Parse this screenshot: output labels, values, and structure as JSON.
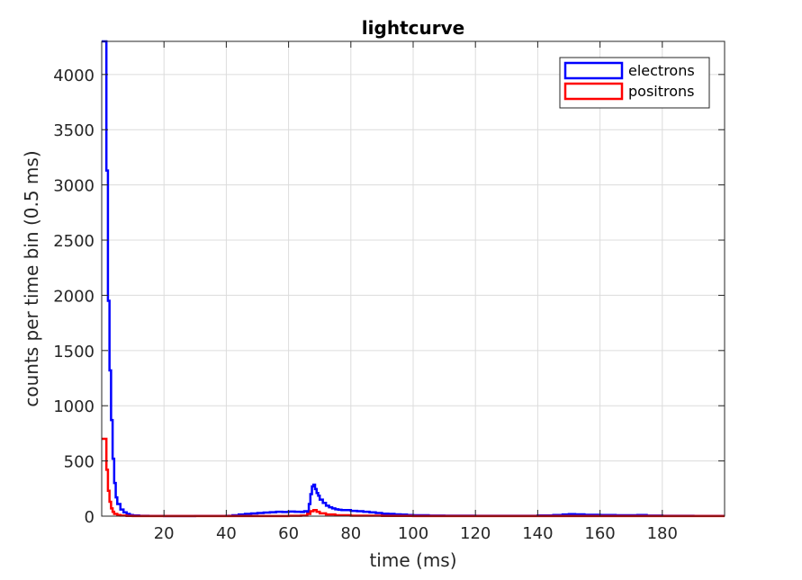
{
  "chart_data": {
    "type": "line",
    "title": "lightcurve",
    "xlabel": "time (ms)",
    "ylabel": "counts per time bin (0.5 ms)",
    "xlim": [
      0,
      200
    ],
    "ylim": [
      0,
      4300
    ],
    "xticks": [
      20,
      40,
      60,
      80,
      100,
      120,
      140,
      160,
      180
    ],
    "yticks": [
      0,
      500,
      1000,
      1500,
      2000,
      2500,
      3000,
      3500,
      4000
    ],
    "xtick_labels": [
      "20",
      "40",
      "60",
      "80",
      "100",
      "120",
      "140",
      "160",
      "180"
    ],
    "ytick_labels": [
      "0",
      "500",
      "1000",
      "1500",
      "2000",
      "2500",
      "3000",
      "3500",
      "4000"
    ],
    "grid": true,
    "legend_position": "top-right",
    "style": "stairs",
    "series": [
      {
        "name": "electrons",
        "color": "#0000ff",
        "points": [
          [
            0,
            4300
          ],
          [
            1,
            4300
          ],
          [
            1.5,
            3130
          ],
          [
            2,
            1950
          ],
          [
            2.5,
            1320
          ],
          [
            3,
            870
          ],
          [
            3.5,
            520
          ],
          [
            4,
            300
          ],
          [
            4.5,
            170
          ],
          [
            5,
            110
          ],
          [
            6,
            60
          ],
          [
            7,
            35
          ],
          [
            8,
            20
          ],
          [
            9,
            10
          ],
          [
            10,
            6
          ],
          [
            12,
            3
          ],
          [
            15,
            2
          ],
          [
            20,
            1
          ],
          [
            30,
            2
          ],
          [
            40,
            3
          ],
          [
            42,
            8
          ],
          [
            44,
            15
          ],
          [
            46,
            20
          ],
          [
            48,
            24
          ],
          [
            50,
            28
          ],
          [
            52,
            33
          ],
          [
            54,
            36
          ],
          [
            56,
            40
          ],
          [
            58,
            38
          ],
          [
            60,
            42
          ],
          [
            62,
            40
          ],
          [
            64,
            38
          ],
          [
            65,
            45
          ],
          [
            66,
            30
          ],
          [
            66.5,
            110
          ],
          [
            67,
            200
          ],
          [
            67.5,
            270
          ],
          [
            68,
            285
          ],
          [
            68.5,
            245
          ],
          [
            69,
            210
          ],
          [
            69.5,
            185
          ],
          [
            70,
            150
          ],
          [
            71,
            120
          ],
          [
            72,
            95
          ],
          [
            73,
            80
          ],
          [
            74,
            70
          ],
          [
            75,
            62
          ],
          [
            76,
            58
          ],
          [
            77,
            55
          ],
          [
            78,
            55
          ],
          [
            80,
            48
          ],
          [
            82,
            45
          ],
          [
            84,
            40
          ],
          [
            86,
            35
          ],
          [
            88,
            28
          ],
          [
            90,
            22
          ],
          [
            92,
            20
          ],
          [
            94,
            16
          ],
          [
            96,
            14
          ],
          [
            98,
            10
          ],
          [
            100,
            8
          ],
          [
            105,
            5
          ],
          [
            110,
            4
          ],
          [
            120,
            3
          ],
          [
            130,
            3
          ],
          [
            140,
            6
          ],
          [
            145,
            10
          ],
          [
            148,
            15
          ],
          [
            150,
            18
          ],
          [
            152,
            16
          ],
          [
            155,
            12
          ],
          [
            160,
            10
          ],
          [
            165,
            8
          ],
          [
            170,
            8
          ],
          [
            172,
            10
          ],
          [
            175,
            5
          ],
          [
            180,
            3
          ],
          [
            190,
            2
          ],
          [
            200,
            2
          ]
        ]
      },
      {
        "name": "positrons",
        "color": "#ff0000",
        "points": [
          [
            0,
            700
          ],
          [
            1,
            700
          ],
          [
            1.5,
            420
          ],
          [
            2,
            230
          ],
          [
            2.5,
            130
          ],
          [
            3,
            70
          ],
          [
            3.5,
            40
          ],
          [
            4,
            20
          ],
          [
            5,
            10
          ],
          [
            6,
            5
          ],
          [
            8,
            2
          ],
          [
            10,
            1
          ],
          [
            40,
            1
          ],
          [
            60,
            3
          ],
          [
            64,
            5
          ],
          [
            66,
            20
          ],
          [
            67,
            45
          ],
          [
            68,
            55
          ],
          [
            69,
            40
          ],
          [
            70,
            25
          ],
          [
            72,
            15
          ],
          [
            75,
            8
          ],
          [
            80,
            4
          ],
          [
            90,
            2
          ],
          [
            100,
            1
          ],
          [
            200,
            1
          ]
        ]
      }
    ]
  }
}
